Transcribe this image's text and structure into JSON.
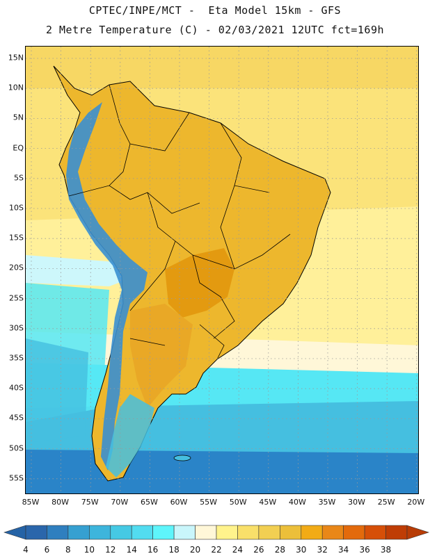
{
  "header": {
    "title_line1": "CPTEC/INPE/MCT -  Eta Model 15km - GFS",
    "title_line2": "2 Metre Temperature (C) - 02/03/2021 12UTC fct=169h"
  },
  "map": {
    "lat_labels": [
      "15N",
      "10N",
      "5N",
      "EQ",
      "5S",
      "10S",
      "15S",
      "20S",
      "25S",
      "30S",
      "35S",
      "40S",
      "45S",
      "50S",
      "55S"
    ],
    "lon_labels": [
      "85W",
      "80W",
      "75W",
      "70W",
      "65W",
      "60W",
      "55W",
      "50W",
      "45W",
      "40W",
      "35W",
      "30W",
      "25W",
      "20W"
    ],
    "colors": {
      "land_hot": "#e39a10",
      "land_warm": "#edb72d",
      "ocean_warm": "#f8de6a",
      "ocean_mild": "#fff09a",
      "ocean_cool": "#cdf7fb",
      "ocean_cold": "#56e7f4",
      "ocean_colder": "#45bfe0",
      "ocean_coldest": "#2a84c8",
      "andes": "#3a8fd0"
    }
  },
  "legend": {
    "ticks": [
      "4",
      "6",
      "8",
      "10",
      "12",
      "14",
      "16",
      "18",
      "20",
      "22",
      "24",
      "26",
      "28",
      "30",
      "32",
      "34",
      "36",
      "38"
    ],
    "colors": [
      "#2a66ab",
      "#2f7fbf",
      "#36a0d1",
      "#3db5dc",
      "#45c9e4",
      "#52dcf0",
      "#5ef5fb",
      "#c9f6fb",
      "#fff7d8",
      "#fff38c",
      "#f9e06a",
      "#f2cf52",
      "#ecbf3a",
      "#f2ab16",
      "#e98718",
      "#e36a0c",
      "#d64f08",
      "#bf3d05"
    ],
    "underflow_color": "#2563a6",
    "overflow_color": "#b83c06"
  }
}
